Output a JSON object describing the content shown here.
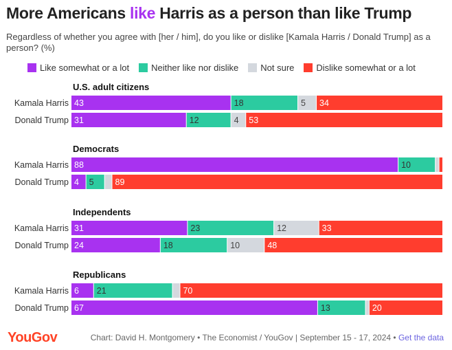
{
  "title": {
    "pre": "More Americans ",
    "highlight": "like",
    "post": " Harris as a person than like Trump"
  },
  "subtitle": "Regardless of whether you agree with [her / him], do you like or dislike [Kamala Harris / Donald Trump] as a person? (%)",
  "colors": {
    "like": "#a832f0",
    "neither": "#2ccba0",
    "notsure": "#d4d8de",
    "dislike": "#ff3d2e",
    "highlight": "#a832f0",
    "brand": "#ff4326"
  },
  "footer": {
    "logo": "YouGov",
    "credit": "Chart: David H. Montgomery • The Economist / YouGov | September 15 - 17, 2024 • ",
    "link": "Get the data"
  },
  "chart_data": {
    "type": "bar",
    "stacked": true,
    "orientation": "horizontal",
    "xlim": [
      0,
      100
    ],
    "legend": "top-left",
    "series_names": [
      "Like somewhat or a lot",
      "Neither like nor dislike",
      "Not sure",
      "Dislike somewhat or a lot"
    ],
    "groups": [
      {
        "name": "U.S. adult citizens",
        "rows": [
          {
            "label": "Kamala Harris",
            "values": [
              43,
              18,
              5,
              34
            ]
          },
          {
            "label": "Donald Trump",
            "values": [
              31,
              12,
              4,
              53
            ]
          }
        ]
      },
      {
        "name": "Democrats",
        "rows": [
          {
            "label": "Kamala Harris",
            "values": [
              88,
              10,
              1,
              1
            ]
          },
          {
            "label": "Donald Trump",
            "values": [
              4,
              5,
              2,
              89
            ]
          }
        ]
      },
      {
        "name": "Independents",
        "rows": [
          {
            "label": "Kamala Harris",
            "values": [
              31,
              23,
              12,
              33
            ]
          },
          {
            "label": "Donald Trump",
            "values": [
              24,
              18,
              10,
              48
            ]
          }
        ]
      },
      {
        "name": "Republicans",
        "rows": [
          {
            "label": "Kamala Harris",
            "values": [
              6,
              21,
              2,
              70
            ]
          },
          {
            "label": "Donald Trump",
            "values": [
              67,
              13,
              1,
              20
            ]
          }
        ]
      }
    ]
  }
}
